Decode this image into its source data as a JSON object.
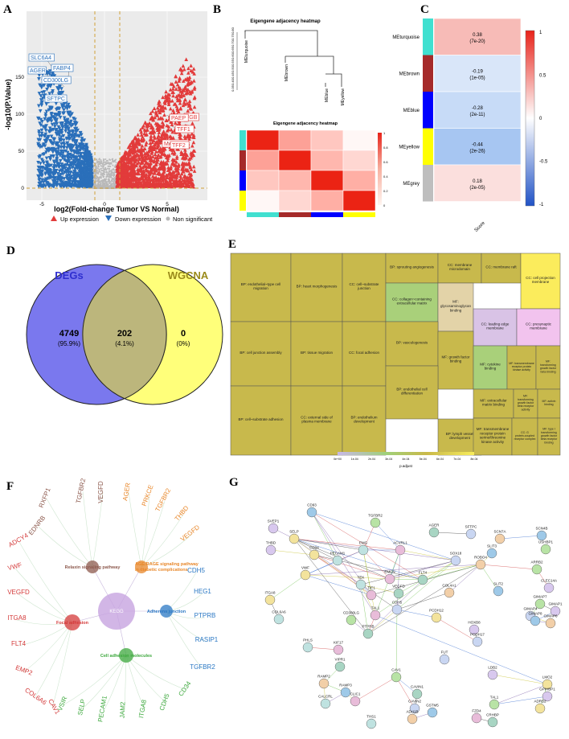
{
  "panels": {
    "A": {
      "letter": "A",
      "ylabel": "-log10(P.Value)",
      "xlabel": "log2(Fold-change Tumor VS Normal)",
      "xticks": [
        "-5",
        "0",
        "5"
      ],
      "yticks": [
        "0",
        "50",
        "100",
        "150"
      ],
      "down_labels": [
        "SLC6A4",
        "FABP4",
        "AGER",
        "CD300LG",
        "SFTPC"
      ],
      "up_labels": [
        "FGB",
        "PAEP",
        "TFF1",
        "MAGEA3",
        "TFF2"
      ],
      "legend": {
        "up": "Up expression",
        "down": "Down expression",
        "ns": "Non significant"
      },
      "colors": {
        "up": "#e23b3b",
        "down": "#2a6fba",
        "ns": "#b9b9b9",
        "threshold": "#d2a23a"
      }
    },
    "B": {
      "letter": "B",
      "dendro_title": "Eigengene adjacency heatmap",
      "dendro_yticks": [
        "0.35",
        "0.40",
        "0.45",
        "0.50",
        "0.55",
        "0.60",
        "0.65",
        "0.70",
        "0.75",
        "0.80"
      ],
      "leaves": [
        "MEturquoise",
        "MEbrown",
        "MEblue",
        "MEyellow"
      ],
      "heatmap_title": "Eigengene adjacency heatmap",
      "scale_ticks": [
        "1",
        "0.8",
        "0.6",
        "0.4",
        "0.2",
        "0"
      ],
      "matrix": [
        [
          1.0,
          0.55,
          0.35,
          0.05
        ],
        [
          0.55,
          1.0,
          0.45,
          0.25
        ],
        [
          0.35,
          0.45,
          1.0,
          0.5
        ],
        [
          0.05,
          0.25,
          0.5,
          1.0
        ]
      ],
      "module_colors": [
        "#40e0d0",
        "#a52a2a",
        "#0000ff",
        "#ffff00"
      ]
    },
    "C": {
      "letter": "C",
      "modules": [
        {
          "name": "MEturquoise",
          "color": "#40e0d0",
          "value": "0.38",
          "p": "(7e-20)",
          "r": 0.38
        },
        {
          "name": "MEbrown",
          "color": "#a52a2a",
          "value": "-0.19",
          "p": "(1e-05)",
          "r": -0.19
        },
        {
          "name": "MEblue",
          "color": "#0000ff",
          "value": "-0.28",
          "p": "(2e-11)",
          "r": -0.28
        },
        {
          "name": "MEyellow",
          "color": "#ffff00",
          "value": "-0.44",
          "p": "(2e-26)",
          "r": -0.44
        },
        {
          "name": "MEgrey",
          "color": "#bebebe",
          "value": "0.18",
          "p": "(2e-05)",
          "r": 0.18
        }
      ],
      "xlabel": "Score",
      "scale_ticks": [
        "1",
        "0.5",
        "0",
        "-0.5",
        "-1"
      ]
    },
    "D": {
      "letter": "D",
      "set1": "DEGs",
      "set2": "WGCNA",
      "only1": "4749",
      "only1_pct": "(95.9%)",
      "both": "202",
      "both_pct": "(4.1%)",
      "only2": "0",
      "only2_pct": "(0%)",
      "colors": {
        "set1": "#7a78ee",
        "set2": "#ffff7a",
        "both": "#bcb67c",
        "set1_title": "#2f2fcf",
        "set2_title": "#9a8a1a"
      }
    },
    "E": {
      "letter": "E",
      "tiles": [
        "BP: endothelial~type cell migration",
        "BP: heart morphogenesis",
        "CC: cell~substrate junction",
        "BP: sprouting angiogenesis",
        "CC: membrane microdomain",
        "CC: membrane raft",
        "CC: cell projection membrane",
        "BP: cell junction assembly",
        "BP: tissue migration",
        "CC: focal adhesion",
        "CC: collagen~containing extracellular matrix",
        "MF: glycosaminoglycan binding",
        "CC: leading edge membrane",
        "CC: presynaptic membrane",
        "BP: vasculogenesis",
        "MF: growth factor binding",
        "MF: cytokine binding",
        "MF: transmembrane receptor protein kinase activity",
        "MF: transforming growth factor beta binding",
        "BP: cell~substrate adhesion",
        "CC: external side of plasma membrane",
        "BP: endothelium development",
        "BP: endothelial cell differentiation",
        "BP: lymph vessel development",
        "MF: extracellular matrix binding",
        "MF: transforming growth factor beta receptor activity",
        "MF: activin binding",
        "MF: transmembrane receptor protein serine/threonine kinase activity",
        "CC: G protein-coupled receptor complex",
        "MF: type I transforming growth factor beta receptor binding"
      ],
      "legend_ticks": [
        "0e+00",
        "1e-04",
        "2e-04",
        "3e-04",
        "4e-04",
        "5e-04",
        "6e-04",
        "7e-04",
        "8e-04"
      ],
      "legend_title": "p.adjust"
    },
    "F": {
      "letter": "F",
      "center": "KEGG",
      "pathways": [
        "Relaxin signaling pathway",
        "AGE-RAGE signaling pathway in diabetic complications",
        "Focal adhesion",
        "Adherens junction",
        "Cell adhesion molecules"
      ],
      "genes_relaxin": [
        "RXFP1",
        "TGFBR2",
        "VEGFD",
        "EDNRB"
      ],
      "genes_age": [
        "AGER",
        "PRKCE",
        "TGFBR2",
        "THBD",
        "VEGFD"
      ],
      "genes_focal": [
        "ADCY4",
        "VWF",
        "VEGFD",
        "ITGA8",
        "FLT4",
        "EMP2",
        "COL6A6",
        "CAV1"
      ],
      "genes_adherens": [
        "CDH5",
        "HEG1",
        "PTPRB",
        "RASIP1",
        "TGFBR2"
      ],
      "genes_cam": [
        "CD34",
        "CDH5",
        "ITGA8",
        "JAM2",
        "PECAM1",
        "SELP",
        "VSIR"
      ],
      "colors": {
        "relaxin": "#8d5a4e",
        "age": "#e8872a",
        "focal": "#d43a3a",
        "adherens": "#2b78c4",
        "cam": "#3da83d",
        "kegg": "#c7a4e0"
      }
    },
    "G": {
      "letter": "G",
      "nodes": [
        "CD93",
        "TGFBR2",
        "SVEP1",
        "SELP",
        "EMG",
        "ACVRL1",
        "AGER",
        "SFTPC",
        "SCN7A",
        "SCN4B",
        "USHBP1",
        "THBD",
        "CD34",
        "PECAM1",
        "EMCN",
        "FLT4",
        "SOX18",
        "ROBO4",
        "SLIT3",
        "ARRB2",
        "CLEC14A",
        "VWF",
        "TEK",
        "TIE1",
        "VEGFD",
        "CDH5",
        "COL4A1",
        "SLIT2",
        "GIMAP7",
        "GIMAP1",
        "ITGA8",
        "COL6A6",
        "TAL1",
        "PTPRB",
        "GIMAP4",
        "GIMAP6",
        "GIMAP8",
        "CD300LG",
        "HOXB8",
        "PCDH12",
        "PHLS",
        "KIF17",
        "VIPR1",
        "PCDH17",
        "RAMP2",
        "RAMP3",
        "CAV1",
        "LDB2",
        "LMO2",
        "CALCRL",
        "CLIC1",
        "CAVIN1",
        "CAVIN2",
        "ADH1B",
        "GSTM5",
        "TAL1B",
        "GPIHBP1",
        "ADRB2",
        "THS1",
        "FZD4",
        "CRHBP",
        "FUT"
      ]
    }
  }
}
